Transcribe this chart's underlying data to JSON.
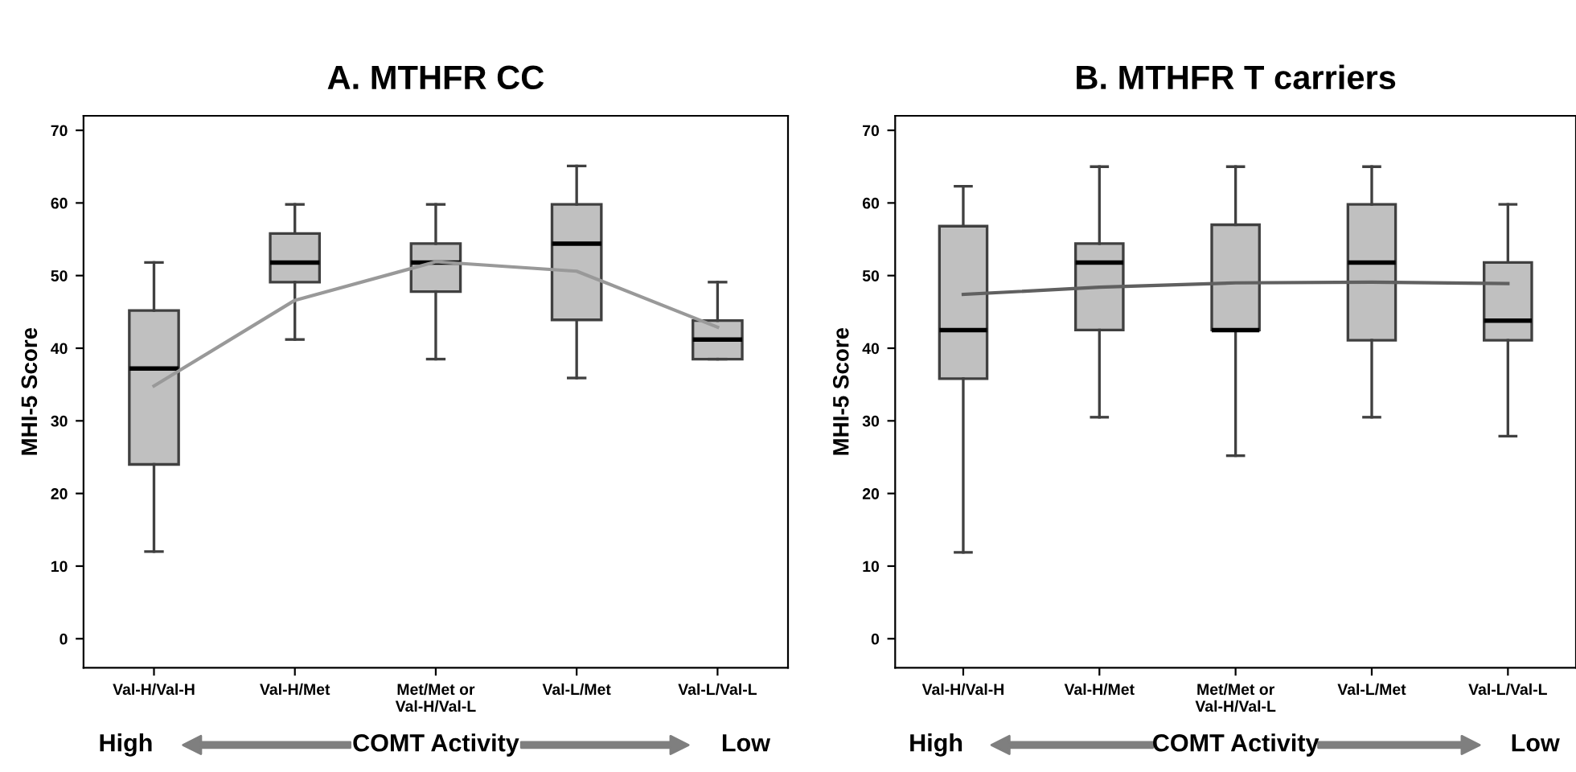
{
  "chart_data": [
    {
      "type": "box",
      "title": "A. MTHFR CC",
      "ylabel": "MHI-5 Score",
      "categories": [
        "Val-H/Val-H",
        "Val-H/Met",
        "Met/Met or\nVal-H/Val-L",
        "Val-L/Met",
        "Val-L/Val-L"
      ],
      "series": [
        {
          "color": "#c0c0c0",
          "boxes": [
            {
              "low": 12,
              "q1": 24,
              "median": 37.2,
              "q3": 45.2,
              "high": 51.8
            },
            {
              "low": 41.2,
              "q1": 49.1,
              "median": 51.8,
              "q3": 55.8,
              "high": 59.8
            },
            {
              "low": 38.5,
              "q1": 47.8,
              "median": 51.8,
              "q3": 54.4,
              "high": 59.8
            },
            {
              "low": 35.9,
              "q1": 43.9,
              "median": 54.4,
              "q3": 59.8,
              "high": 65.1
            },
            {
              "low": 38.5,
              "q1": 38.5,
              "median": 41.2,
              "q3": 43.8,
              "high": 49.1
            }
          ]
        },
        {
          "type": "line",
          "color": "#999999",
          "values": [
            34.8,
            46.6,
            51.9,
            50.6,
            42.9
          ]
        }
      ],
      "ylim": [
        -4,
        72
      ],
      "yticks": [
        0,
        10,
        20,
        30,
        40,
        50,
        60,
        70
      ],
      "grid": false,
      "legend": false,
      "annotations": [
        "High",
        "COMT Activity",
        "Low"
      ]
    },
    {
      "type": "box",
      "title": "B. MTHFR T carriers",
      "ylabel": "MHI-5 Score",
      "categories": [
        "Val-H/Val-H",
        "Val-H/Met",
        "Met/Met or\nVal-H/Val-L",
        "Val-L/Met",
        "Val-L/Val-L"
      ],
      "series": [
        {
          "color": "#c0c0c0",
          "boxes": [
            {
              "low": 11.9,
              "q1": 35.8,
              "median": 42.5,
              "q3": 56.8,
              "high": 62.3
            },
            {
              "low": 30.5,
              "q1": 42.5,
              "median": 51.8,
              "q3": 54.4,
              "high": 65
            },
            {
              "low": 25.2,
              "q1": 42.5,
              "median": 42.5,
              "q3": 57,
              "high": 65
            },
            {
              "low": 30.5,
              "q1": 41.1,
              "median": 51.8,
              "q3": 59.8,
              "high": 65
            },
            {
              "low": 27.9,
              "q1": 41.1,
              "median": 43.8,
              "q3": 51.8,
              "high": 59.8
            }
          ]
        },
        {
          "type": "line",
          "color": "#606060",
          "values": [
            47.4,
            48.4,
            49.0,
            49.1,
            48.9
          ]
        }
      ],
      "ylim": [
        -4,
        72
      ],
      "yticks": [
        0,
        10,
        20,
        30,
        40,
        50,
        60,
        70
      ],
      "grid": false,
      "legend": false,
      "annotations": [
        "High",
        "COMT Activity",
        "Low"
      ]
    }
  ]
}
